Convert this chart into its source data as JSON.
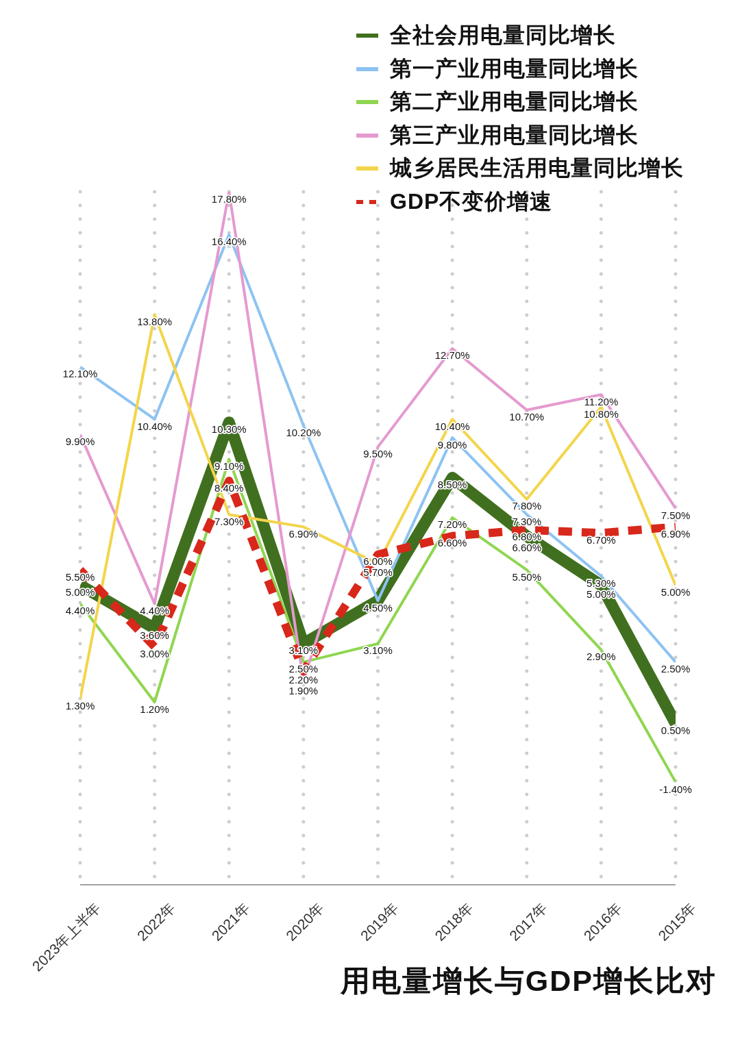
{
  "chart_data": {
    "type": "line",
    "title": "用电量增长与GDP增长比对",
    "categories": [
      "2023年上半年",
      "2022年",
      "2021年",
      "2020年",
      "2019年",
      "2018年",
      "2017年",
      "2016年",
      "2015年"
    ],
    "series": [
      {
        "name": "全社会用电量同比增长",
        "color": "#40701f",
        "values": [
          5.0,
          3.6,
          10.3,
          3.1,
          4.5,
          8.5,
          6.6,
          5.0,
          0.5
        ],
        "value_labels": [
          "5.00%",
          "3.60%",
          "10.30%",
          "3.10%",
          "4.50%",
          "8.50%",
          "6.60%",
          "5.00%",
          "0.50%"
        ]
      },
      {
        "name": "第一产业用电量同比增长",
        "color": "#8dc3f2",
        "values": [
          12.1,
          10.4,
          16.4,
          10.2,
          4.5,
          9.8,
          7.3,
          5.3,
          2.5
        ],
        "value_labels": [
          "12.10%",
          "10.40%",
          "16.40%",
          "10.20%",
          null,
          "9.80%",
          "7.30%",
          "5.30%",
          "2.50%"
        ]
      },
      {
        "name": "第二产业用电量同比增长",
        "color": "#8fd650",
        "values": [
          4.4,
          1.2,
          9.1,
          2.5,
          3.1,
          7.2,
          5.5,
          2.9,
          -1.4
        ],
        "value_labels": [
          "4.40%",
          "1.20%",
          "9.10%",
          "2.50%",
          "3.10%",
          "7.20%",
          "5.50%",
          "2.90%",
          "-1.40%"
        ]
      },
      {
        "name": "第三产业用电量同比增长",
        "color": "#e59acf",
        "values": [
          9.9,
          4.4,
          17.8,
          1.9,
          9.5,
          12.7,
          10.7,
          11.2,
          7.5
        ],
        "value_labels": [
          "9.90%",
          "4.40%",
          "17.80%",
          "1.90%",
          "9.50%",
          "12.70%",
          "10.70%",
          "11.20%",
          "7.50%"
        ]
      },
      {
        "name": "城乡居民生活用电量同比增长",
        "color": "#f3d54b",
        "values": [
          1.3,
          13.8,
          7.3,
          6.9,
          5.7,
          10.4,
          7.8,
          10.8,
          5.0
        ],
        "value_labels": [
          "1.30%",
          "13.80%",
          "7.30%",
          "6.90%",
          "5.70%",
          "10.40%",
          "7.80%",
          "10.80%",
          "5.00%"
        ]
      },
      {
        "name": "GDP不变价增速",
        "color": "#d8281b",
        "line_style": "dashed",
        "values": [
          5.5,
          3.0,
          8.4,
          2.2,
          6.0,
          6.6,
          6.8,
          6.7,
          6.9
        ],
        "value_labels": [
          "5.50%",
          "3.00%",
          "8.40%",
          "2.20%",
          "6.00%",
          "6.60%",
          "6.80%",
          "6.70%",
          "6.90%"
        ]
      }
    ],
    "legend": "top right",
    "grid": "x",
    "tick_labels": "x",
    "marker": "none",
    "line_style": "solid"
  }
}
